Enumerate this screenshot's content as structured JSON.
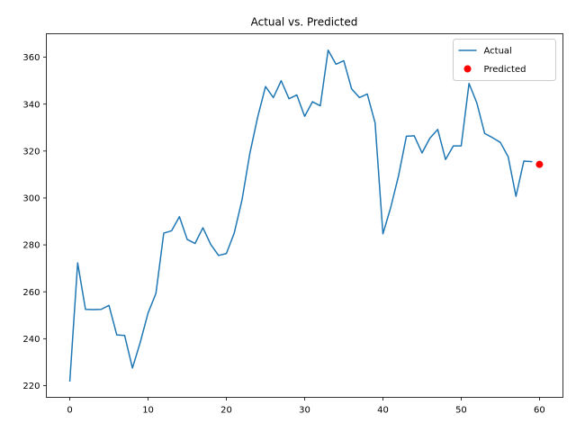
{
  "chart_data": {
    "type": "line",
    "title": "Actual vs. Predicted",
    "xlabel": "",
    "ylabel": "",
    "xlim": [
      -3,
      63
    ],
    "ylim": [
      215,
      370
    ],
    "xticks": [
      0,
      10,
      20,
      30,
      40,
      50,
      60
    ],
    "yticks": [
      220,
      240,
      260,
      280,
      300,
      320,
      340,
      360
    ],
    "grid": false,
    "legend_position": "top-right",
    "series": [
      {
        "name": "Actual",
        "kind": "line",
        "color": "#1f77b4",
        "x": [
          0,
          1,
          2,
          3,
          4,
          5,
          6,
          7,
          8,
          9,
          10,
          11,
          12,
          13,
          14,
          15,
          16,
          17,
          18,
          19,
          20,
          21,
          22,
          23,
          24,
          25,
          26,
          27,
          28,
          29,
          30,
          31,
          32,
          33,
          34,
          35,
          36,
          37,
          38,
          39,
          40,
          41,
          42,
          43,
          44,
          45,
          46,
          47,
          48,
          49,
          50,
          51,
          52,
          53,
          54,
          55,
          56,
          57,
          58,
          59
        ],
        "y": [
          222,
          272.3,
          252.5,
          252.4,
          252.5,
          254.2,
          241.6,
          241.4,
          227.5,
          238.5,
          251,
          259.3,
          285,
          286,
          292,
          282.3,
          280.6,
          287.3,
          280.2,
          275.5,
          276.3,
          285,
          299.2,
          319,
          334.5,
          347.5,
          342.8,
          350,
          342.3,
          343.9,
          334.8,
          341,
          339.3,
          363,
          357,
          358.5,
          346.5,
          342.8,
          344.3,
          332,
          284.7,
          296,
          309.5,
          326.3,
          326.5,
          319.2,
          325.5,
          329.2,
          316.4,
          322.2,
          322.2,
          348.8,
          340.5,
          327.5,
          325.7,
          323.7,
          317.6,
          300.7,
          315.7,
          315.5
        ]
      },
      {
        "name": "Predicted",
        "kind": "scatter",
        "color": "#ff0000",
        "x": [
          60
        ],
        "y": [
          314.3
        ]
      }
    ]
  }
}
